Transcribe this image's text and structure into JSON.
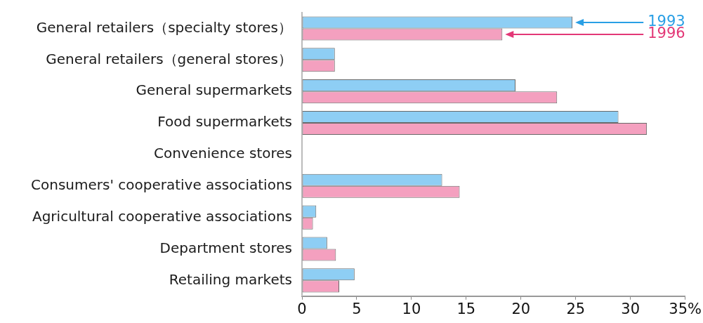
{
  "chart_data": {
    "type": "bar",
    "orientation": "horizontal",
    "categories": [
      "General retailers（specialty stores）",
      "General retailers（general stores）",
      "General supermarkets",
      "Food supermarkets",
      "Convenience stores",
      "Consumers' cooperative associations",
      "Agricultural cooperative associations",
      "Department stores",
      "Retailing markets"
    ],
    "series": [
      {
        "name": "1993",
        "color": "#8ecef4",
        "values": [
          24.7,
          3.0,
          19.5,
          28.9,
          null,
          12.8,
          1.3,
          2.3,
          4.8
        ]
      },
      {
        "name": "1996",
        "color": "#f4a0bf",
        "values": [
          18.3,
          3.0,
          23.3,
          31.5,
          null,
          14.4,
          1.0,
          3.1,
          3.4
        ]
      }
    ],
    "xlim": [
      0,
      35
    ],
    "xticks": [
      0,
      5,
      10,
      15,
      20,
      25,
      30,
      {
        "value": 35,
        "label": "35%"
      }
    ]
  }
}
